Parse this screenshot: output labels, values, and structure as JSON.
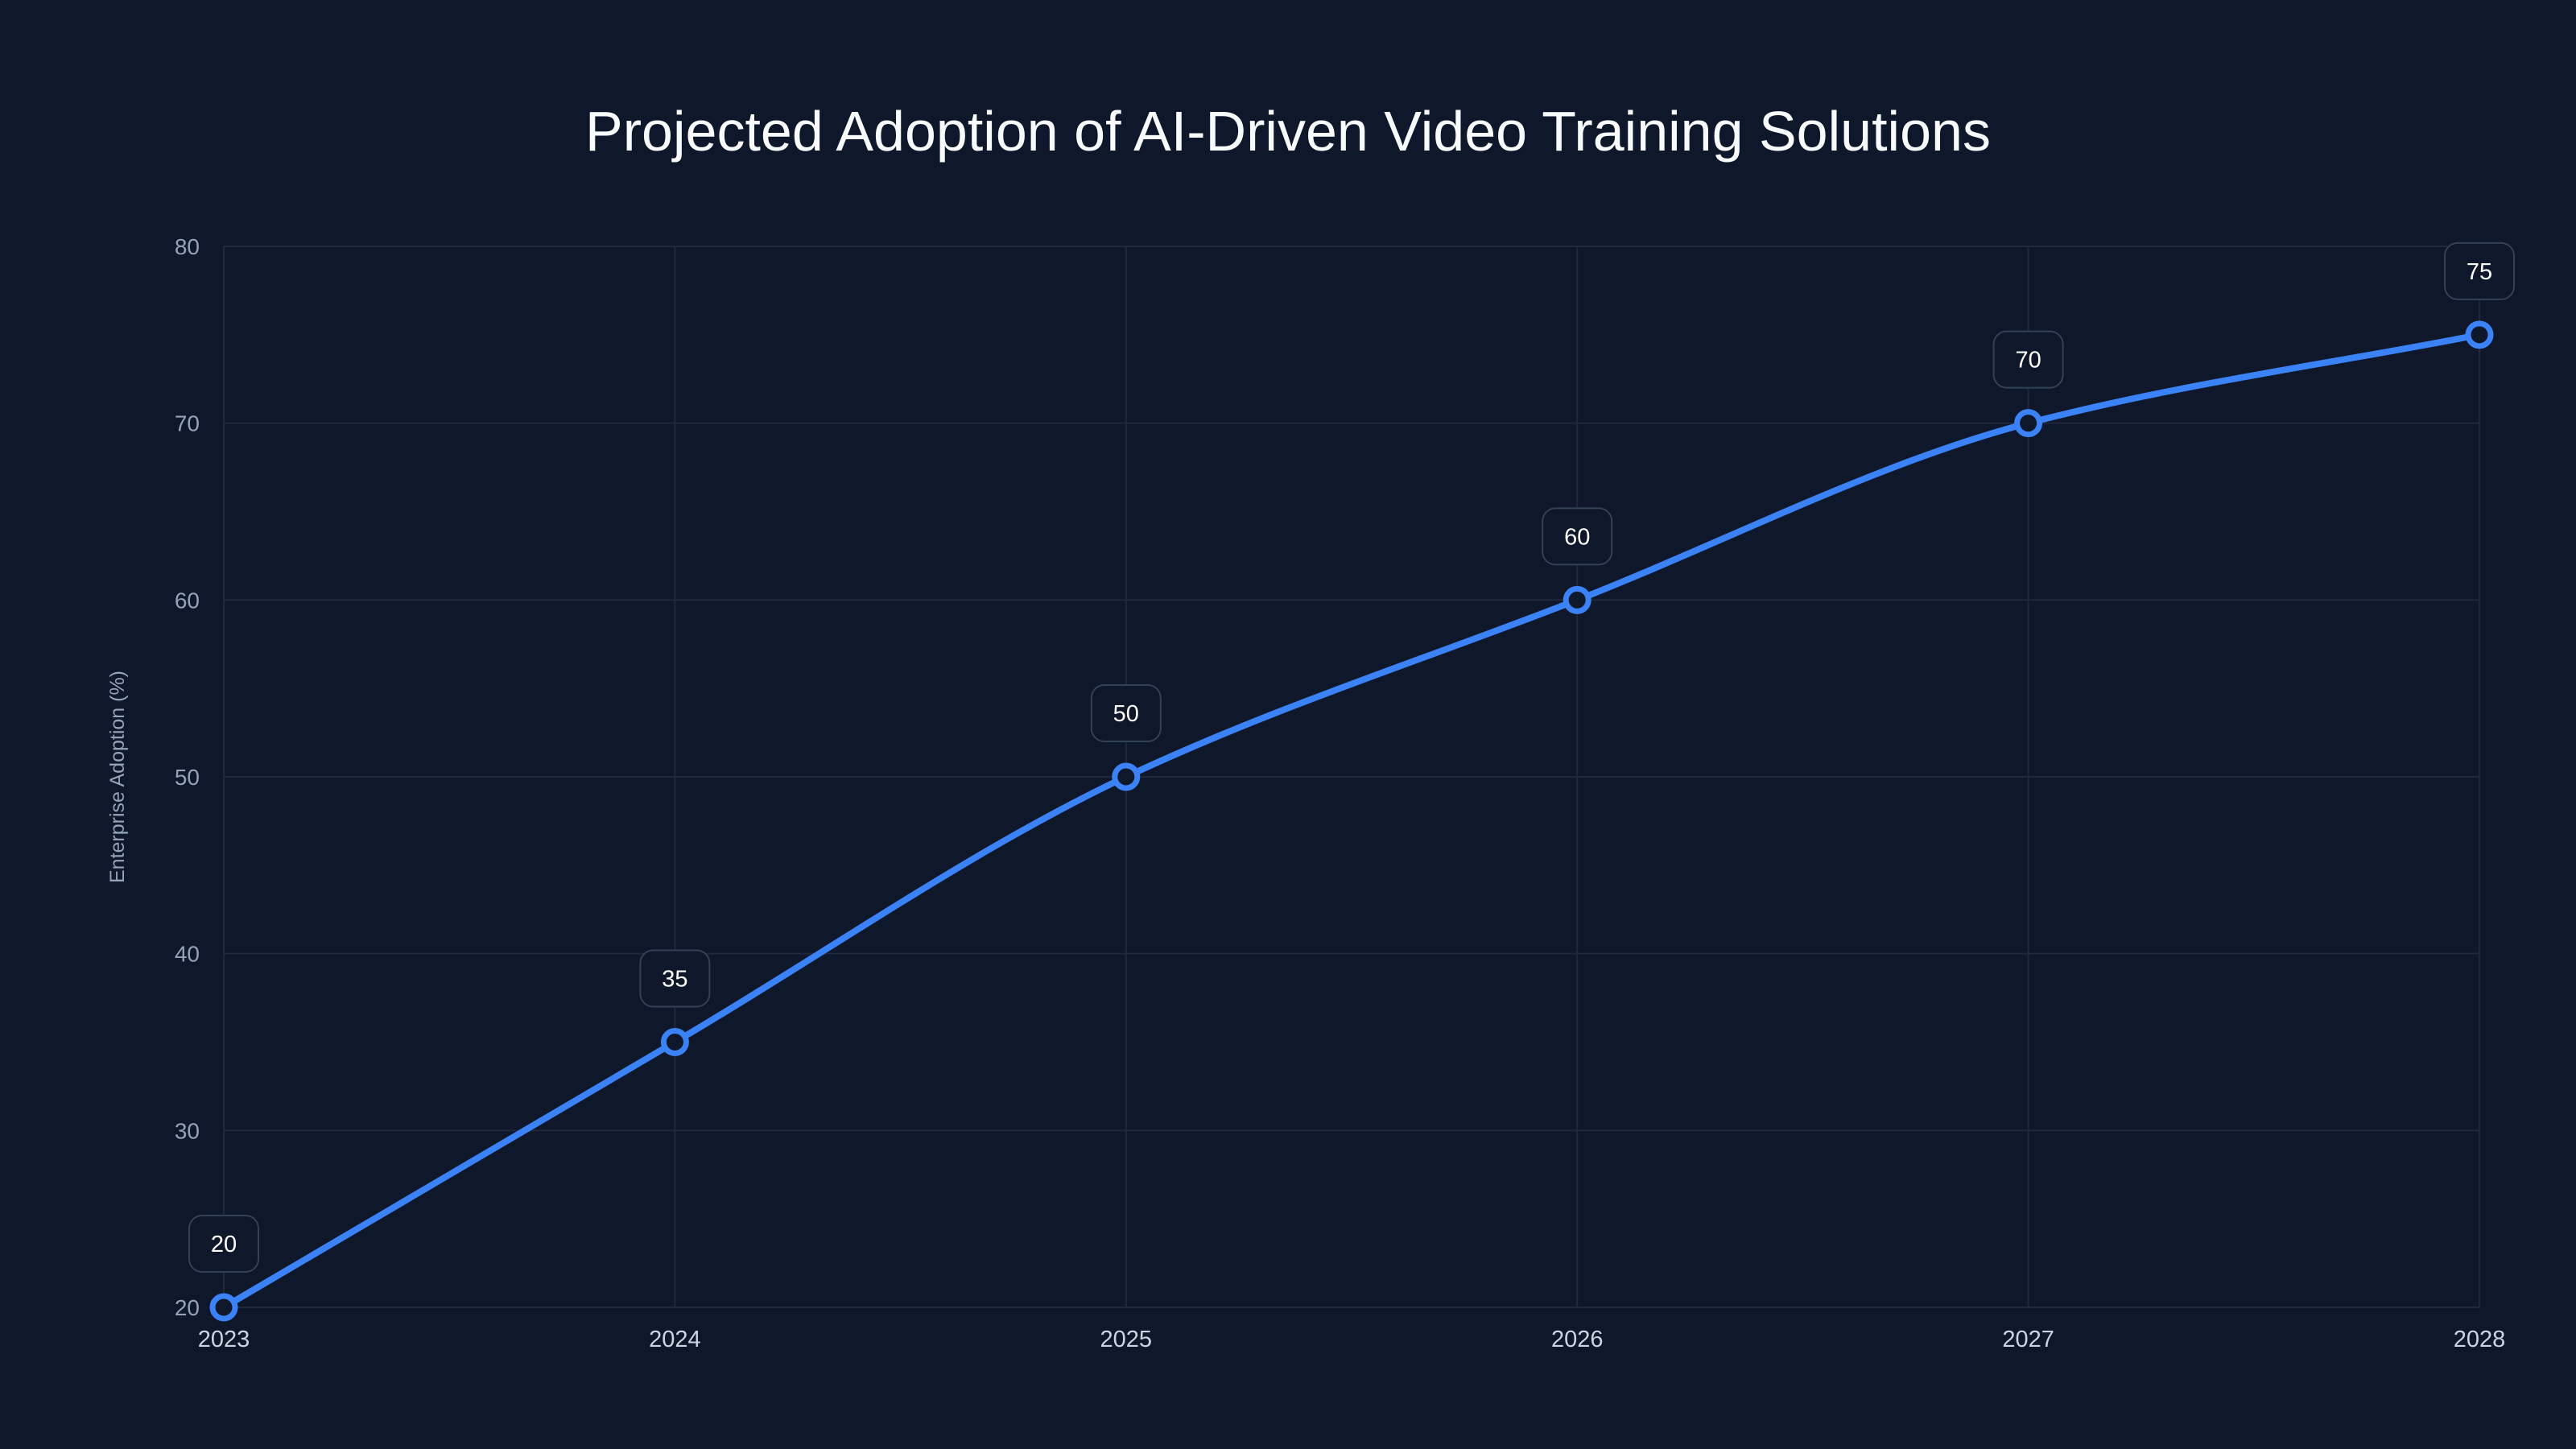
{
  "chart_data": {
    "type": "line",
    "title": "Projected Adoption of AI-Driven Video Training Solutions",
    "xlabel": "",
    "ylabel": "Enterprise Adoption (%)",
    "categories": [
      "2023",
      "2024",
      "2025",
      "2026",
      "2027",
      "2028"
    ],
    "values": [
      20,
      35,
      50,
      60,
      70,
      75
    ],
    "data_labels": [
      "20",
      "35",
      "50",
      "60",
      "70",
      "75"
    ],
    "ylim": [
      20,
      80
    ],
    "yticks": [
      20,
      30,
      40,
      50,
      60,
      70,
      80
    ],
    "grid": true,
    "smooth": true,
    "colors": {
      "background": "#0f172a",
      "line": "#3b82f6",
      "grid": "#1e293b"
    }
  }
}
